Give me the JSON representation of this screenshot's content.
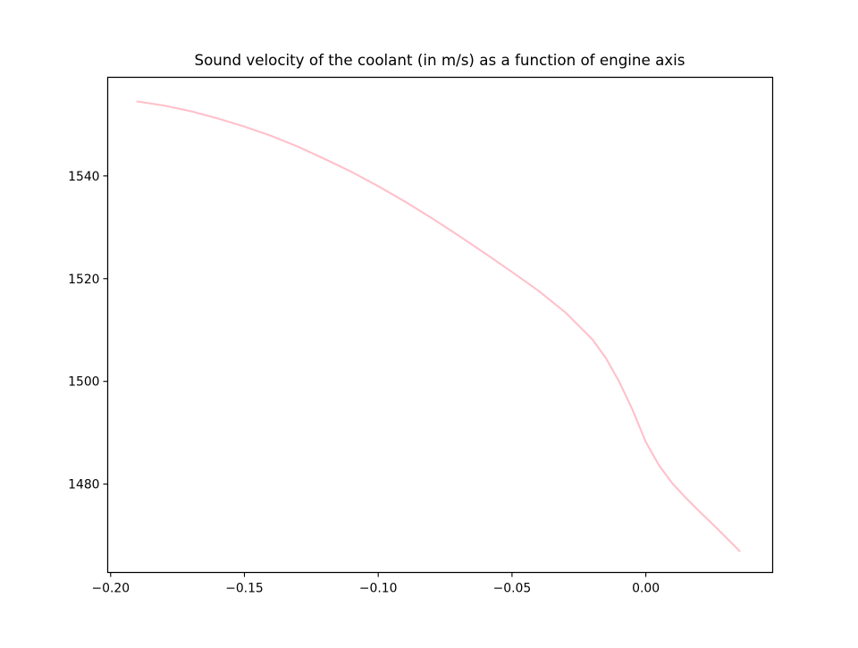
{
  "chart_data": {
    "type": "line",
    "title": "Sound velocity of the coolant (in m/s) as a function of engine axis",
    "xlabel": "",
    "ylabel": "",
    "xlim": [
      -0.2011,
      0.0474
    ],
    "ylim": [
      1462.8,
      1559.2
    ],
    "grid": false,
    "legend": "none",
    "xticks": [
      {
        "value": -0.2,
        "label": "−0.20"
      },
      {
        "value": -0.15,
        "label": "−0.15"
      },
      {
        "value": -0.1,
        "label": "−0.10"
      },
      {
        "value": -0.05,
        "label": "−0.05"
      },
      {
        "value": 0.0,
        "label": "0.00"
      }
    ],
    "yticks": [
      {
        "value": 1480,
        "label": "1480"
      },
      {
        "value": 1500,
        "label": "1500"
      },
      {
        "value": 1520,
        "label": "1520"
      },
      {
        "value": 1540,
        "label": "1540"
      }
    ],
    "series": [
      {
        "color": "#ffc0cb",
        "x": [
          -0.19,
          -0.18,
          -0.17,
          -0.16,
          -0.15,
          -0.14,
          -0.13,
          -0.12,
          -0.11,
          -0.1,
          -0.09,
          -0.08,
          -0.07,
          -0.06,
          -0.05,
          -0.04,
          -0.03,
          -0.02,
          -0.015,
          -0.01,
          -0.005,
          0.0,
          0.005,
          0.01,
          0.015,
          0.02,
          0.025,
          0.03,
          0.035
        ],
        "y": [
          1554.5,
          1553.7,
          1552.6,
          1551.2,
          1549.6,
          1547.8,
          1545.7,
          1543.3,
          1540.8,
          1538.0,
          1535.0,
          1531.8,
          1528.4,
          1524.9,
          1521.3,
          1517.6,
          1513.4,
          1508.2,
          1504.6,
          1500.0,
          1494.5,
          1488.2,
          1483.6,
          1480.1,
          1477.3,
          1474.7,
          1472.2,
          1469.6,
          1467.0
        ]
      }
    ]
  }
}
